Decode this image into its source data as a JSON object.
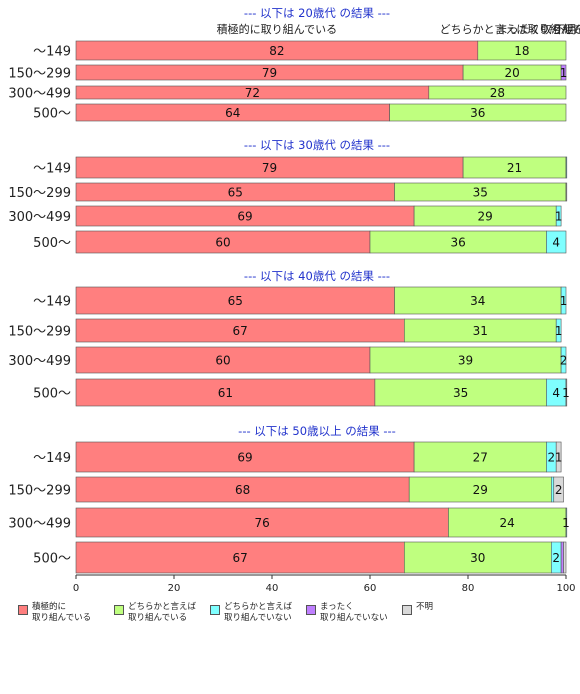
{
  "chart_data": {
    "type": "bar",
    "orientation": "horizontal",
    "stacked": true,
    "percent_stacked": true,
    "xlim": [
      0,
      100
    ],
    "x_ticks": [
      0,
      20,
      40,
      60,
      80,
      100
    ],
    "grid": false,
    "legend_position": "bottom",
    "colors": {
      "active": "#ff7f7f",
      "somewhat_active": "#bfff7f",
      "somewhat_inactive": "#7fffff",
      "not_at_all": "#bf7fff",
      "unknown": "#d9d9d9"
    },
    "legend": [
      {
        "key": "active",
        "label": "積極的に\n取り組んでいる"
      },
      {
        "key": "somewhat_active",
        "label": "どちらかと言えば\n取り組んでいる"
      },
      {
        "key": "somewhat_inactive",
        "label": "どちらかと言えば\n取り組んでいない"
      },
      {
        "key": "not_at_all",
        "label": "まったく\n取り組んでいない"
      },
      {
        "key": "unknown",
        "label": "不明"
      }
    ],
    "top_labels": [
      {
        "text": "積極的に取り組んでいる",
        "x": 41
      },
      {
        "text": "どちらかと言えば取り組んでいる",
        "x": 91
      },
      {
        "text": "まったく取り組んでいない",
        "x": 99.3
      },
      {
        "text": "不明",
        "x": 99.8
      }
    ],
    "groups": [
      {
        "title": "--- 以下は 20歳代 の結果 ---",
        "rows": [
          {
            "category": "～149",
            "values": [
              82,
              18,
              0,
              0,
              0
            ],
            "labels": [
              "82",
              "18",
              "",
              "",
              ""
            ]
          },
          {
            "category": "150～299",
            "values": [
              79,
              20,
              0,
              1,
              0
            ],
            "labels": [
              "79",
              "20",
              "",
              "1",
              ""
            ]
          },
          {
            "category": "300～499",
            "values": [
              72,
              28,
              0,
              0,
              0
            ],
            "labels": [
              "72",
              "28",
              "",
              "",
              ""
            ]
          },
          {
            "category": "500～",
            "values": [
              64,
              36,
              0,
              0,
              0
            ],
            "labels": [
              "64",
              "36",
              "",
              "",
              ""
            ]
          }
        ]
      },
      {
        "title": "--- 以下は 30歳代 の結果 ---",
        "rows": [
          {
            "category": "～149",
            "values": [
              79,
              21,
              0.5,
              0,
              0
            ],
            "labels": [
              "79",
              "21",
              "",
              "",
              ""
            ]
          },
          {
            "category": "150～299",
            "values": [
              65,
              35,
              0,
              0,
              0.3
            ],
            "labels": [
              "65",
              "35",
              "",
              "",
              ""
            ]
          },
          {
            "category": "300～499",
            "values": [
              69,
              29,
              1,
              0,
              0
            ],
            "labels": [
              "69",
              "29",
              "1",
              "",
              ""
            ]
          },
          {
            "category": "500～",
            "values": [
              60,
              36,
              4,
              0,
              0
            ],
            "labels": [
              "60",
              "36",
              "4",
              "",
              ""
            ]
          }
        ]
      },
      {
        "title": "--- 以下は 40歳代 の結果 ---",
        "rows": [
          {
            "category": "～149",
            "values": [
              65,
              34,
              1,
              0,
              0
            ],
            "labels": [
              "65",
              "34",
              "1",
              "",
              ""
            ]
          },
          {
            "category": "150～299",
            "values": [
              67,
              31,
              1,
              0,
              0
            ],
            "labels": [
              "67",
              "31",
              "1",
              "",
              ""
            ]
          },
          {
            "category": "300～499",
            "values": [
              60,
              39,
              2,
              0,
              0
            ],
            "labels": [
              "60",
              "39",
              "2",
              "",
              ""
            ]
          },
          {
            "category": "500～",
            "values": [
              61,
              35,
              4,
              0,
              1
            ],
            "labels": [
              "61",
              "35",
              "4",
              "",
              "1"
            ]
          }
        ]
      },
      {
        "title": "--- 以下は 50歳以上 の結果 ---",
        "rows": [
          {
            "category": "～149",
            "values": [
              69,
              27,
              2,
              0,
              1
            ],
            "labels": [
              "69",
              "27",
              "2",
              "",
              "1"
            ]
          },
          {
            "category": "150～299",
            "values": [
              68,
              29,
              0.5,
              0,
              2
            ],
            "labels": [
              "68",
              "29",
              "",
              "",
              "2"
            ]
          },
          {
            "category": "300～499",
            "values": [
              76,
              24,
              1,
              0,
              0
            ],
            "labels": [
              "76",
              "24",
              "1",
              "",
              ""
            ]
          },
          {
            "category": "500～",
            "values": [
              67,
              30,
              2,
              0.5,
              0.5
            ],
            "labels": [
              "67",
              "30",
              "2",
              "",
              ""
            ]
          }
        ]
      }
    ]
  }
}
